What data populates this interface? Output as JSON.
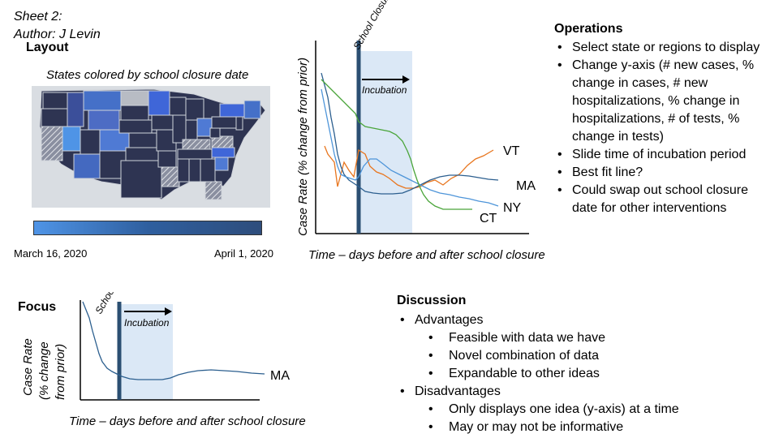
{
  "sheet": {
    "line1": "Sheet 2:",
    "line2": "Author: J Levin"
  },
  "layout": {
    "title": "Layout",
    "map_caption": "States colored by school closure date",
    "legend_start": "March 16, 2020",
    "legend_end": "April 1, 2020",
    "colors": {
      "early": "#4f94e6",
      "late": "#2e3452",
      "unknown": "#b8bcc4",
      "background": "#d9dde2"
    }
  },
  "chart_data": [
    {
      "type": "line",
      "annotation_top": "School Closure",
      "annotation_incubation": "Incubation",
      "ylabel": "Case Rate (% change from prior)",
      "xlabel": "Time – days before and after school closure",
      "series": [
        {
          "name": "VT",
          "color": "#e8761f"
        },
        {
          "name": "MA",
          "color": "#2c5f8f"
        },
        {
          "name": "NY",
          "color": "#4e95d9"
        },
        {
          "name": "CT",
          "color": "#4aa53a"
        }
      ]
    },
    {
      "type": "line",
      "annotation_top": "School Closure",
      "annotation_incubation": "Incubation",
      "ylabel_lines": [
        "Case Rate",
        "(% change",
        "from prior)"
      ],
      "xlabel": "Time – days before and after school closure",
      "series": [
        {
          "name": "MA",
          "color": "#2c5f8f"
        }
      ]
    }
  ],
  "operations": {
    "title": "Operations",
    "items": [
      "Select state or regions to display",
      "Change y-axis (# new cases, % change in cases, # new hospitalizations, % change in hospitalizations, # of tests, % change in tests)",
      "Slide time of incubation period",
      "Best fit line?",
      "Could swap out school closure date for other interventions"
    ]
  },
  "focus": {
    "title": "Focus"
  },
  "discussion": {
    "title": "Discussion",
    "advantages_label": "Advantages",
    "advantages": [
      "Feasible with data we have",
      "Novel combination of data",
      "Expandable to other ideas"
    ],
    "disadvantages_label": "Disadvantages",
    "disadvantages": [
      "Only displays one idea (y-axis) at a time",
      "May or may not be informative"
    ]
  }
}
